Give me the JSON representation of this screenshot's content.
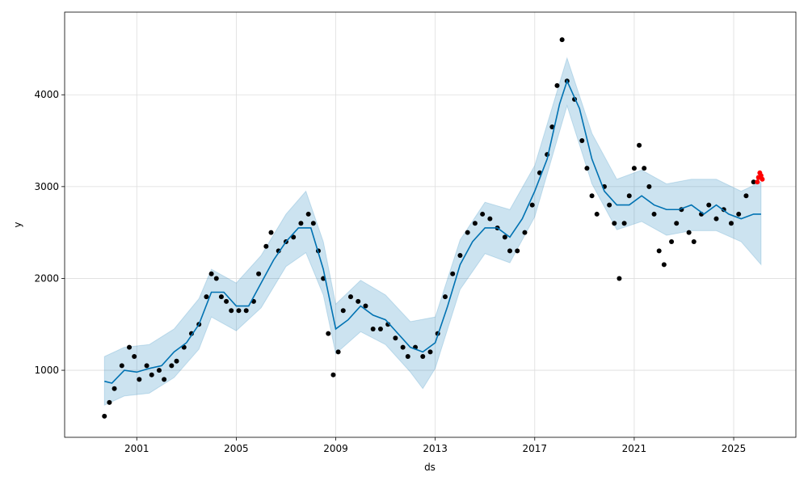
{
  "chart_data": {
    "type": "scatter",
    "title": "",
    "xlabel": "ds",
    "ylabel": "y",
    "x_range": [
      1998.1,
      2027.5
    ],
    "ylim": [
      270,
      4900
    ],
    "x_ticks": [
      {
        "value": 2001.0,
        "label": "2001"
      },
      {
        "value": 2005.0,
        "label": "2005"
      },
      {
        "value": 2009.0,
        "label": "2009"
      },
      {
        "value": 2013.0,
        "label": "2013"
      },
      {
        "value": 2017.0,
        "label": "2017"
      },
      {
        "value": 2021.0,
        "label": "2021"
      },
      {
        "value": 2025.0,
        "label": "2025"
      }
    ],
    "y_ticks": [
      {
        "value": 1000,
        "label": "1000"
      },
      {
        "value": 2000,
        "label": "2000"
      },
      {
        "value": 3000,
        "label": "3000"
      },
      {
        "value": 4000,
        "label": "4000"
      }
    ],
    "grid": true,
    "colors": {
      "observed": "#000000",
      "forecast": "#0072B2",
      "interval": "#0072B2",
      "recent": "#ff0000",
      "grid": "#dddddd"
    },
    "observed": [
      [
        1999.7,
        500
      ],
      [
        1999.9,
        650
      ],
      [
        2000.1,
        800
      ],
      [
        2000.4,
        1050
      ],
      [
        2000.7,
        1250
      ],
      [
        2000.9,
        1150
      ],
      [
        2001.1,
        900
      ],
      [
        2001.4,
        1050
      ],
      [
        2001.6,
        950
      ],
      [
        2001.9,
        1000
      ],
      [
        2002.1,
        900
      ],
      [
        2002.4,
        1050
      ],
      [
        2002.6,
        1100
      ],
      [
        2002.9,
        1250
      ],
      [
        2003.2,
        1400
      ],
      [
        2003.5,
        1500
      ],
      [
        2003.8,
        1800
      ],
      [
        2004.0,
        2050
      ],
      [
        2004.2,
        2000
      ],
      [
        2004.4,
        1800
      ],
      [
        2004.6,
        1750
      ],
      [
        2004.8,
        1650
      ],
      [
        2005.1,
        1650
      ],
      [
        2005.4,
        1650
      ],
      [
        2005.7,
        1750
      ],
      [
        2005.9,
        2050
      ],
      [
        2006.2,
        2350
      ],
      [
        2006.4,
        2500
      ],
      [
        2006.7,
        2300
      ],
      [
        2007.0,
        2400
      ],
      [
        2007.3,
        2450
      ],
      [
        2007.6,
        2600
      ],
      [
        2007.9,
        2700
      ],
      [
        2008.1,
        2600
      ],
      [
        2008.3,
        2300
      ],
      [
        2008.5,
        2000
      ],
      [
        2008.7,
        1400
      ],
      [
        2008.9,
        950
      ],
      [
        2009.1,
        1200
      ],
      [
        2009.3,
        1650
      ],
      [
        2009.6,
        1800
      ],
      [
        2009.9,
        1750
      ],
      [
        2010.2,
        1700
      ],
      [
        2010.5,
        1450
      ],
      [
        2010.8,
        1450
      ],
      [
        2011.1,
        1500
      ],
      [
        2011.4,
        1350
      ],
      [
        2011.7,
        1250
      ],
      [
        2011.9,
        1150
      ],
      [
        2012.2,
        1250
      ],
      [
        2012.5,
        1150
      ],
      [
        2012.8,
        1200
      ],
      [
        2013.1,
        1400
      ],
      [
        2013.4,
        1800
      ],
      [
        2013.7,
        2050
      ],
      [
        2014.0,
        2250
      ],
      [
        2014.3,
        2500
      ],
      [
        2014.6,
        2600
      ],
      [
        2014.9,
        2700
      ],
      [
        2015.2,
        2650
      ],
      [
        2015.5,
        2550
      ],
      [
        2015.8,
        2450
      ],
      [
        2016.0,
        2300
      ],
      [
        2016.3,
        2300
      ],
      [
        2016.6,
        2500
      ],
      [
        2016.9,
        2800
      ],
      [
        2017.2,
        3150
      ],
      [
        2017.5,
        3350
      ],
      [
        2017.7,
        3650
      ],
      [
        2017.9,
        4100
      ],
      [
        2018.1,
        4600
      ],
      [
        2018.3,
        4150
      ],
      [
        2018.6,
        3950
      ],
      [
        2018.9,
        3500
      ],
      [
        2019.1,
        3200
      ],
      [
        2019.3,
        2900
      ],
      [
        2019.5,
        2700
      ],
      [
        2019.8,
        3000
      ],
      [
        2020.0,
        2800
      ],
      [
        2020.2,
        2600
      ],
      [
        2020.4,
        2000
      ],
      [
        2020.6,
        2600
      ],
      [
        2020.8,
        2900
      ],
      [
        2021.0,
        3200
      ],
      [
        2021.2,
        3450
      ],
      [
        2021.4,
        3200
      ],
      [
        2021.6,
        3000
      ],
      [
        2021.8,
        2700
      ],
      [
        2022.0,
        2300
      ],
      [
        2022.2,
        2150
      ],
      [
        2022.5,
        2400
      ],
      [
        2022.7,
        2600
      ],
      [
        2022.9,
        2750
      ],
      [
        2023.2,
        2500
      ],
      [
        2023.4,
        2400
      ],
      [
        2023.7,
        2700
      ],
      [
        2024.0,
        2800
      ],
      [
        2024.3,
        2650
      ],
      [
        2024.6,
        2750
      ],
      [
        2024.9,
        2600
      ],
      [
        2025.2,
        2700
      ],
      [
        2025.5,
        2900
      ],
      [
        2025.8,
        3050
      ],
      [
        2026.0,
        3100
      ]
    ],
    "recent_observed": [
      [
        2025.95,
        3050
      ],
      [
        2026.0,
        3100
      ],
      [
        2026.05,
        3150
      ],
      [
        2026.1,
        3120
      ],
      [
        2026.15,
        3080
      ]
    ],
    "forecast": [
      [
        1999.7,
        880
      ],
      [
        2000.0,
        860
      ],
      [
        2000.5,
        1000
      ],
      [
        2001.0,
        980
      ],
      [
        2001.5,
        1020
      ],
      [
        2002.0,
        1050
      ],
      [
        2002.5,
        1200
      ],
      [
        2003.0,
        1300
      ],
      [
        2003.5,
        1500
      ],
      [
        2004.0,
        1850
      ],
      [
        2004.5,
        1850
      ],
      [
        2005.0,
        1700
      ],
      [
        2005.5,
        1700
      ],
      [
        2006.0,
        1950
      ],
      [
        2006.5,
        2200
      ],
      [
        2007.0,
        2400
      ],
      [
        2007.5,
        2550
      ],
      [
        2008.0,
        2550
      ],
      [
        2008.5,
        2100
      ],
      [
        2009.0,
        1450
      ],
      [
        2009.5,
        1550
      ],
      [
        2010.0,
        1700
      ],
      [
        2010.5,
        1600
      ],
      [
        2011.0,
        1550
      ],
      [
        2011.5,
        1400
      ],
      [
        2012.0,
        1250
      ],
      [
        2012.5,
        1200
      ],
      [
        2013.0,
        1300
      ],
      [
        2013.5,
        1700
      ],
      [
        2014.0,
        2150
      ],
      [
        2014.5,
        2400
      ],
      [
        2015.0,
        2550
      ],
      [
        2015.5,
        2550
      ],
      [
        2016.0,
        2450
      ],
      [
        2016.5,
        2650
      ],
      [
        2017.0,
        2950
      ],
      [
        2017.5,
        3300
      ],
      [
        2018.0,
        3900
      ],
      [
        2018.3,
        4150
      ],
      [
        2018.8,
        3850
      ],
      [
        2019.3,
        3300
      ],
      [
        2019.8,
        2950
      ],
      [
        2020.3,
        2800
      ],
      [
        2020.8,
        2800
      ],
      [
        2021.3,
        2900
      ],
      [
        2021.8,
        2800
      ],
      [
        2022.3,
        2750
      ],
      [
        2022.8,
        2750
      ],
      [
        2023.3,
        2800
      ],
      [
        2023.8,
        2700
      ],
      [
        2024.3,
        2800
      ],
      [
        2024.8,
        2700
      ],
      [
        2025.3,
        2650
      ],
      [
        2025.8,
        2700
      ],
      [
        2026.1,
        2700
      ]
    ],
    "interval": {
      "upper": [
        [
          1999.7,
          1150
        ],
        [
          2000.5,
          1250
        ],
        [
          2001.5,
          1280
        ],
        [
          2002.5,
          1450
        ],
        [
          2003.5,
          1780
        ],
        [
          2004.0,
          2100
        ],
        [
          2005.0,
          1950
        ],
        [
          2006.0,
          2250
        ],
        [
          2007.0,
          2700
        ],
        [
          2007.8,
          2950
        ],
        [
          2008.5,
          2400
        ],
        [
          2009.0,
          1720
        ],
        [
          2010.0,
          1980
        ],
        [
          2011.0,
          1820
        ],
        [
          2012.0,
          1530
        ],
        [
          2013.0,
          1580
        ],
        [
          2014.0,
          2420
        ],
        [
          2015.0,
          2830
        ],
        [
          2016.0,
          2750
        ],
        [
          2017.0,
          3230
        ],
        [
          2018.3,
          4400
        ],
        [
          2019.3,
          3580
        ],
        [
          2020.3,
          3080
        ],
        [
          2021.3,
          3180
        ],
        [
          2022.3,
          3030
        ],
        [
          2023.3,
          3080
        ],
        [
          2024.3,
          3080
        ],
        [
          2025.3,
          2950
        ],
        [
          2026.1,
          3050
        ]
      ],
      "lower": [
        [
          1999.7,
          620
        ],
        [
          2000.5,
          720
        ],
        [
          2001.5,
          750
        ],
        [
          2002.5,
          920
        ],
        [
          2003.5,
          1230
        ],
        [
          2004.0,
          1580
        ],
        [
          2005.0,
          1430
        ],
        [
          2006.0,
          1680
        ],
        [
          2007.0,
          2130
        ],
        [
          2007.8,
          2280
        ],
        [
          2008.5,
          1820
        ],
        [
          2009.0,
          1180
        ],
        [
          2010.0,
          1420
        ],
        [
          2011.0,
          1280
        ],
        [
          2012.0,
          980
        ],
        [
          2012.5,
          800
        ],
        [
          2013.0,
          1020
        ],
        [
          2014.0,
          1880
        ],
        [
          2015.0,
          2270
        ],
        [
          2016.0,
          2170
        ],
        [
          2017.0,
          2670
        ],
        [
          2018.3,
          3880
        ],
        [
          2019.3,
          3030
        ],
        [
          2020.3,
          2530
        ],
        [
          2021.3,
          2620
        ],
        [
          2022.3,
          2470
        ],
        [
          2023.3,
          2520
        ],
        [
          2024.3,
          2520
        ],
        [
          2025.3,
          2400
        ],
        [
          2026.1,
          2150
        ]
      ]
    }
  }
}
